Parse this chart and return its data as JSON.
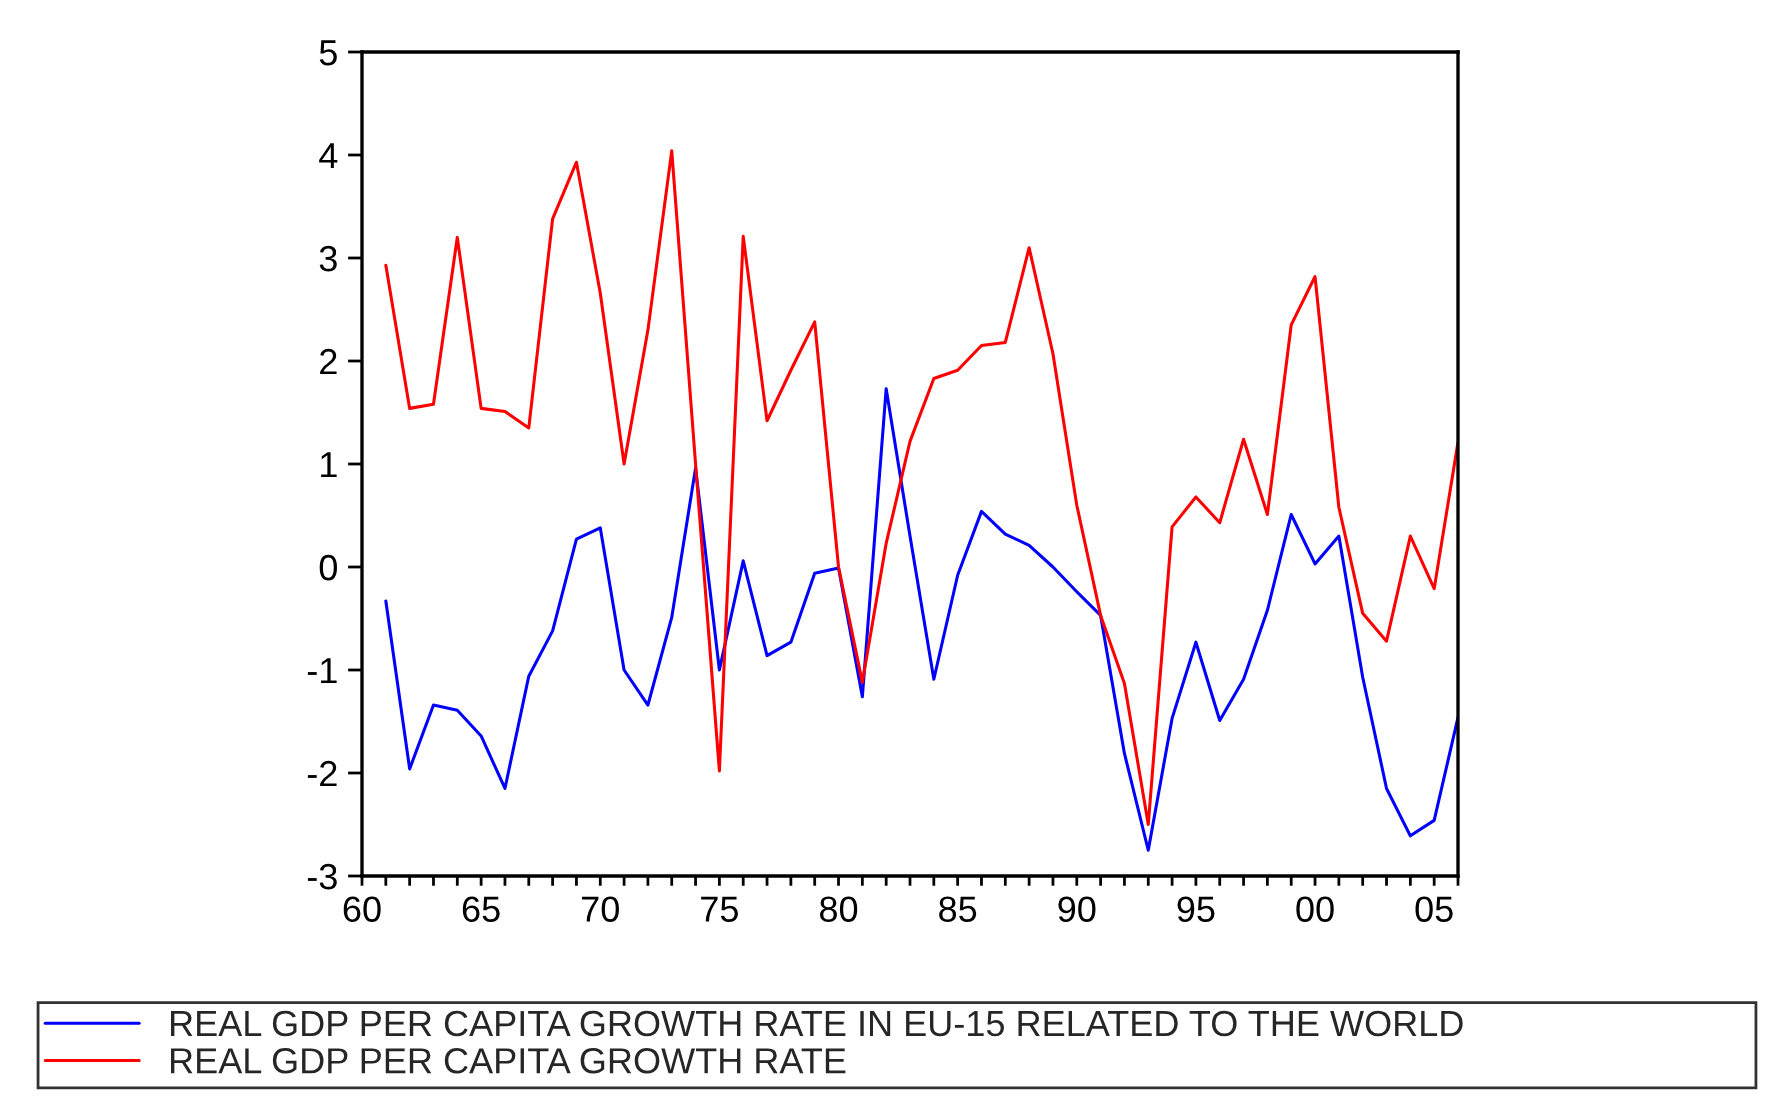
{
  "chart_data": {
    "type": "line",
    "x": [
      1961,
      1962,
      1963,
      1964,
      1965,
      1966,
      1967,
      1968,
      1969,
      1970,
      1971,
      1972,
      1973,
      1974,
      1975,
      1976,
      1977,
      1978,
      1979,
      1980,
      1981,
      1982,
      1983,
      1984,
      1985,
      1986,
      1987,
      1988,
      1989,
      1990,
      1991,
      1992,
      1993,
      1994,
      1995,
      1996,
      1997,
      1998,
      1999,
      2000,
      2001,
      2002,
      2003,
      2004,
      2005,
      2006
    ],
    "series": [
      {
        "name": "REAL GDP PER CAPITA GROWTH RATE IN EU-15 RELATED TO THE WORLD",
        "color": "#0000ff",
        "values": [
          -0.33,
          -1.96,
          -1.34,
          -1.39,
          -1.64,
          -2.15,
          -1.06,
          -0.62,
          0.27,
          0.38,
          -1.0,
          -1.34,
          -0.49,
          0.96,
          -1.0,
          0.06,
          -0.86,
          -0.73,
          -0.06,
          -0.01,
          -1.26,
          1.73,
          0.3,
          -1.09,
          -0.08,
          0.54,
          0.32,
          0.21,
          0.0,
          -0.24,
          -0.47,
          -1.81,
          -2.75,
          -1.47,
          -0.73,
          -1.49,
          -1.09,
          -0.42,
          0.51,
          0.03,
          0.3,
          -1.07,
          -2.15,
          -2.61,
          -2.46,
          -1.46
        ]
      },
      {
        "name": "REAL GDP PER CAPITA GROWTH RATE",
        "color": "#ff0000",
        "values": [
          2.93,
          1.54,
          1.58,
          3.2,
          1.54,
          1.51,
          1.35,
          3.38,
          3.93,
          2.66,
          1.0,
          2.3,
          4.04,
          1.0,
          -1.98,
          3.21,
          1.42,
          1.91,
          2.38,
          0.0,
          -1.12,
          0.23,
          1.22,
          1.83,
          1.91,
          2.15,
          2.18,
          3.1,
          2.07,
          0.6,
          -0.47,
          -1.13,
          -2.5,
          0.39,
          0.68,
          0.43,
          1.24,
          0.51,
          2.35,
          2.82,
          0.58,
          -0.45,
          -0.72,
          0.3,
          -0.21,
          1.21
        ]
      }
    ],
    "xlim": [
      1960,
      2006
    ],
    "xticks": [
      {
        "value": 1960,
        "label": "60"
      },
      {
        "value": 1961,
        "label": null
      },
      {
        "value": 1962,
        "label": null
      },
      {
        "value": 1963,
        "label": null
      },
      {
        "value": 1964,
        "label": null
      },
      {
        "value": 1965,
        "label": "65"
      },
      {
        "value": 1966,
        "label": null
      },
      {
        "value": 1967,
        "label": null
      },
      {
        "value": 1968,
        "label": null
      },
      {
        "value": 1969,
        "label": null
      },
      {
        "value": 1970,
        "label": "70"
      },
      {
        "value": 1971,
        "label": null
      },
      {
        "value": 1972,
        "label": null
      },
      {
        "value": 1973,
        "label": null
      },
      {
        "value": 1974,
        "label": null
      },
      {
        "value": 1975,
        "label": "75"
      },
      {
        "value": 1976,
        "label": null
      },
      {
        "value": 1977,
        "label": null
      },
      {
        "value": 1978,
        "label": null
      },
      {
        "value": 1979,
        "label": null
      },
      {
        "value": 1980,
        "label": "80"
      },
      {
        "value": 1981,
        "label": null
      },
      {
        "value": 1982,
        "label": null
      },
      {
        "value": 1983,
        "label": null
      },
      {
        "value": 1984,
        "label": null
      },
      {
        "value": 1985,
        "label": "85"
      },
      {
        "value": 1986,
        "label": null
      },
      {
        "value": 1987,
        "label": null
      },
      {
        "value": 1988,
        "label": null
      },
      {
        "value": 1989,
        "label": null
      },
      {
        "value": 1990,
        "label": "90"
      },
      {
        "value": 1991,
        "label": null
      },
      {
        "value": 1992,
        "label": null
      },
      {
        "value": 1993,
        "label": null
      },
      {
        "value": 1994,
        "label": null
      },
      {
        "value": 1995,
        "label": "95"
      },
      {
        "value": 1996,
        "label": null
      },
      {
        "value": 1997,
        "label": null
      },
      {
        "value": 1998,
        "label": null
      },
      {
        "value": 1999,
        "label": null
      },
      {
        "value": 2000,
        "label": "00"
      },
      {
        "value": 2001,
        "label": null
      },
      {
        "value": 2002,
        "label": null
      },
      {
        "value": 2003,
        "label": null
      },
      {
        "value": 2004,
        "label": null
      },
      {
        "value": 2005,
        "label": "05"
      },
      {
        "value": 2006,
        "label": null
      }
    ],
    "ylim": [
      -3,
      5
    ],
    "yticks": [
      -3,
      -2,
      -1,
      0,
      1,
      2,
      3,
      4,
      5
    ],
    "grid": false,
    "legend": "bottom",
    "marker": "none",
    "line_style": "solid"
  }
}
